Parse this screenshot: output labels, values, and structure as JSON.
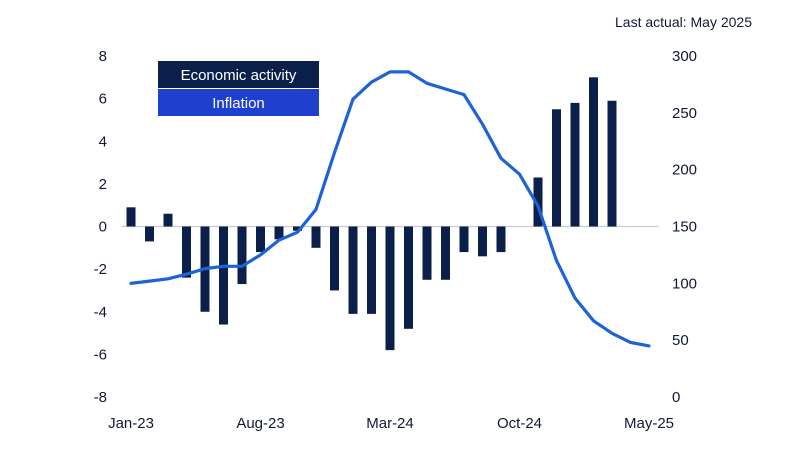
{
  "note": "Last actual: May 2025",
  "colors": {
    "bars": "#0b1f4b",
    "line": "#1e63d6",
    "inflation_legend": "#1f3fcf",
    "zero_line": "#c8ccd6"
  },
  "chart_data": {
    "type": "bar+line",
    "x_tick_labels": [
      "Jan-23",
      "Aug-23",
      "Mar-24",
      "Oct-24",
      "May-25"
    ],
    "legend": [
      "Economic activity",
      "Inflation"
    ],
    "legend_placement": "top-left",
    "grid": false,
    "categories": [
      "Jan-23",
      "Feb-23",
      "Mar-23",
      "Apr-23",
      "May-23",
      "Jun-23",
      "Jul-23",
      "Aug-23",
      "Sep-23",
      "Oct-23",
      "Nov-23",
      "Dec-23",
      "Jan-24",
      "Feb-24",
      "Mar-24",
      "Apr-24",
      "May-24",
      "Jun-24",
      "Jul-24",
      "Aug-24",
      "Sep-24",
      "Oct-24",
      "Nov-24",
      "Dec-24",
      "Jan-25",
      "Feb-25",
      "Mar-25",
      "Apr-25",
      "May-25"
    ],
    "left_axis": {
      "ylim": [
        -8,
        8
      ],
      "ticks": [
        -8,
        -6,
        -4,
        -2,
        0,
        2,
        4,
        6,
        8
      ]
    },
    "right_axis": {
      "ylim": [
        0,
        300
      ],
      "ticks": [
        0,
        50,
        100,
        150,
        200,
        250,
        300
      ]
    },
    "series": [
      {
        "name": "Economic activity",
        "type": "bar",
        "axis": "left",
        "values": [
          0.9,
          -0.7,
          0.6,
          -2.4,
          -4.0,
          -4.6,
          -2.7,
          -1.2,
          -0.6,
          -0.2,
          -1.0,
          -3.0,
          -4.1,
          -4.1,
          -5.8,
          -4.8,
          -2.5,
          -2.5,
          -1.2,
          -1.4,
          -1.2,
          null,
          2.3,
          5.5,
          5.8,
          7.0,
          5.9,
          null,
          null
        ]
      },
      {
        "name": "Inflation",
        "type": "line",
        "axis": "right",
        "values": [
          100,
          102,
          104,
          108,
          113,
          115,
          115,
          125,
          138,
          145,
          165,
          215,
          262,
          277,
          286,
          286,
          276,
          271,
          266,
          240,
          210,
          196,
          168,
          120,
          87,
          67,
          56,
          48,
          45
        ]
      }
    ]
  }
}
